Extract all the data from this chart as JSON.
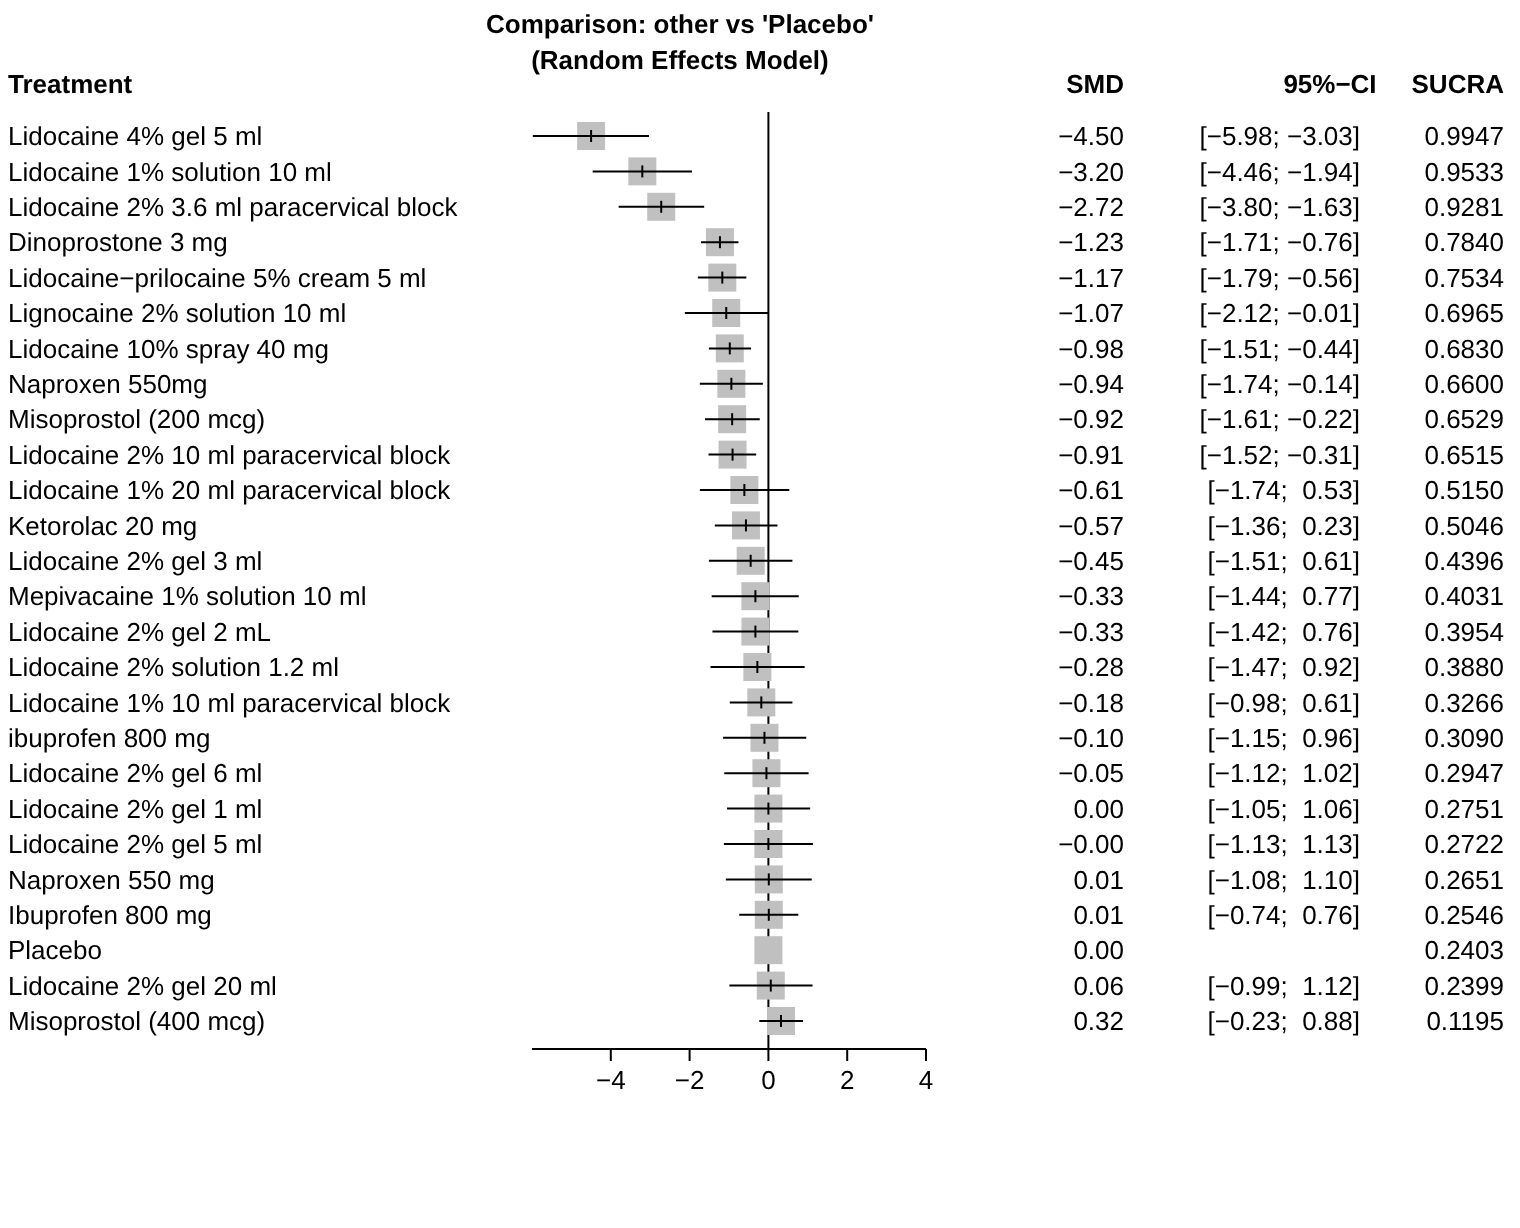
{
  "chart_data": [
    {
      "type": "scatter",
      "orientation": "horizontal",
      "title": "Comparison: other vs 'Placebo'",
      "subtitle": "(Random Effects Model)",
      "ylabel": "Treatment",
      "marker": "square",
      "categories": [
        "Lidocaine 4% gel 5 ml",
        "Lidocaine 1% solution 10 ml",
        "Lidocaine 2% 3.6 ml paracervical block",
        "Dinoprostone 3 mg",
        "Lidocaine−prilocaine 5% cream 5 ml",
        "Lignocaine 2% solution 10 ml",
        "Lidocaine 10% spray 40 mg",
        "Naproxen 550mg",
        "Misoprostol (200 mcg)",
        "Lidocaine 2% 10 ml paracervical block",
        "Lidocaine 1% 20 ml paracervical block",
        "Ketorolac 20 mg",
        "Lidocaine 2% gel 3 ml",
        "Mepivacaine 1% solution 10 ml",
        "Lidocaine 2% gel 2 mL",
        "Lidocaine 2% solution 1.2 ml",
        "Lidocaine 1% 10 ml paracervical block",
        "ibuprofen 800 mg",
        "Lidocaine 2% gel 6 ml",
        "Lidocaine 2% gel 1 ml",
        "Lidocaine 2% gel 5 ml",
        "Naproxen 550 mg",
        "Ibuprofen 800 mg",
        "Placebo",
        "Lidocaine 2% gel 20 ml",
        "Misoprostol (400 mcg)"
      ],
      "series": [
        {
          "name": "SMD",
          "color": "#c0c0c0",
          "values": [
            -4.5,
            -3.2,
            -2.72,
            -1.23,
            -1.17,
            -1.07,
            -0.98,
            -0.94,
            -0.92,
            -0.91,
            -0.61,
            -0.57,
            -0.45,
            -0.33,
            -0.33,
            -0.28,
            -0.18,
            -0.1,
            -0.05,
            0.0,
            0.0,
            0.01,
            0.01,
            0.0,
            0.06,
            0.32
          ],
          "errors": [
            [
              -5.98,
              -3.03
            ],
            [
              -4.46,
              -1.94
            ],
            [
              -3.8,
              -1.63
            ],
            [
              -1.71,
              -0.76
            ],
            [
              -1.79,
              -0.56
            ],
            [
              -2.12,
              -0.01
            ],
            [
              -1.51,
              -0.44
            ],
            [
              -1.74,
              -0.14
            ],
            [
              -1.61,
              -0.22
            ],
            [
              -1.52,
              -0.31
            ],
            [
              -1.74,
              0.53
            ],
            [
              -1.36,
              0.23
            ],
            [
              -1.51,
              0.61
            ],
            [
              -1.44,
              0.77
            ],
            [
              -1.42,
              0.76
            ],
            [
              -1.47,
              0.92
            ],
            [
              -0.98,
              0.61
            ],
            [
              -1.15,
              0.96
            ],
            [
              -1.12,
              1.02
            ],
            [
              -1.05,
              1.06
            ],
            [
              -1.13,
              1.13
            ],
            [
              -1.08,
              1.1
            ],
            [
              -0.74,
              0.76
            ],
            null,
            [
              -0.99,
              1.12
            ],
            [
              -0.23,
              0.88
            ]
          ],
          "value_labels": [
            "−4.50",
            "−3.20",
            "−2.72",
            "−1.23",
            "−1.17",
            "−1.07",
            "−0.98",
            "−0.94",
            "−0.92",
            "−0.91",
            "−0.61",
            "−0.57",
            "−0.45",
            "−0.33",
            "−0.33",
            "−0.28",
            "−0.18",
            "−0.10",
            "−0.05",
            "0.00",
            "−0.00",
            "0.01",
            "0.01",
            "0.00",
            "0.06",
            "0.32"
          ]
        }
      ],
      "xlim": [
        -6,
        4
      ],
      "xticks": [
        {
          "value": -4,
          "label": "−4"
        },
        {
          "value": -2,
          "label": "−2"
        },
        0,
        2,
        4
      ],
      "ref_lines": [
        {
          "axis": "x",
          "value": 0,
          "color": "#000000"
        }
      ]
    },
    {
      "type": "other",
      "title": "95%−CI",
      "value_labels": [
        "[−5.98; −3.03]",
        "[−4.46; −1.94]",
        "[−3.80; −1.63]",
        "[−1.71; −0.76]",
        "[−1.79; −0.56]",
        "[−2.12; −0.01]",
        "[−1.51; −0.44]",
        "[−1.74; −0.14]",
        "[−1.61; −0.22]",
        "[−1.52; −0.31]",
        "[−1.74;  0.53]",
        "[−1.36;  0.23]",
        "[−1.51;  0.61]",
        "[−1.44;  0.77]",
        "[−1.42;  0.76]",
        "[−1.47;  0.92]",
        "[−0.98;  0.61]",
        "[−1.15;  0.96]",
        "[−1.12;  1.02]",
        "[−1.05;  1.06]",
        "[−1.13;  1.13]",
        "[−1.08;  1.10]",
        "[−0.74;  0.76]",
        null,
        "[−0.99;  1.12]",
        "[−0.23;  0.88]"
      ]
    },
    {
      "type": "other",
      "title": "SUCRA",
      "value_labels": [
        "0.9947",
        "0.9533",
        "0.9281",
        "0.7840",
        "0.7534",
        "0.6965",
        "0.6830",
        "0.6600",
        "0.6529",
        "0.6515",
        "0.5150",
        "0.5046",
        "0.4396",
        "0.4031",
        "0.3954",
        "0.3880",
        "0.3266",
        "0.3090",
        "0.2947",
        "0.2751",
        "0.2722",
        "0.2651",
        "0.2546",
        "0.2403",
        "0.2399",
        "0.1195"
      ]
    }
  ]
}
